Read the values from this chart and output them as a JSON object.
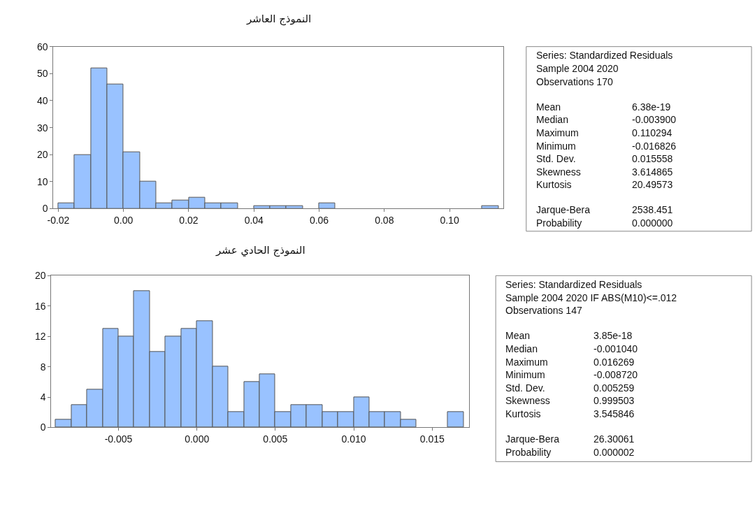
{
  "chart_data": [
    {
      "type": "histogram",
      "title": "النموذج العاشر",
      "bins": [
        -0.02,
        -0.015,
        -0.01,
        -0.005,
        0.0,
        0.005,
        0.01,
        0.015,
        0.02,
        0.025,
        0.03,
        0.035,
        0.04,
        0.045,
        0.05,
        0.055,
        0.06,
        0.065,
        0.07,
        0.075,
        0.08,
        0.085,
        0.09,
        0.095,
        0.1,
        0.105,
        0.11,
        0.115
      ],
      "values": [
        2,
        20,
        52,
        46,
        21,
        10,
        2,
        3,
        4,
        2,
        2,
        0,
        1,
        1,
        1,
        0,
        2,
        0,
        0,
        0,
        0,
        0,
        0,
        0,
        0,
        0,
        1
      ],
      "color": "#99c2ff",
      "xlim": [
        -0.0215,
        0.1165
      ],
      "xticks": [
        {
          "value": -0.02,
          "label": "-0.02"
        },
        {
          "value": 0,
          "label": "0.00"
        },
        {
          "value": 0.02,
          "label": "0.02"
        },
        {
          "value": 0.04,
          "label": "0.04"
        },
        {
          "value": 0.06,
          "label": "0.06"
        },
        {
          "value": 0.08,
          "label": "0.08"
        },
        {
          "value": 0.1,
          "label": "0.10"
        }
      ],
      "ylim": [
        0,
        60
      ],
      "yticks": [
        0,
        10,
        20,
        30,
        40,
        50,
        60
      ]
    },
    {
      "type": "other",
      "annotations": [
        "Series: Standardized Residuals",
        "Sample 2004 2020",
        "Observations 170",
        "Mean 6.38e-19",
        "Median -0.003900",
        "Maximum 0.110294",
        "Minimum -0.016826",
        "Std. Dev. 0.015558",
        "Skewness 3.614865",
        "Kurtosis 20.49573",
        "Jarque-Bera 2538.451",
        "Probability 0.000000"
      ]
    },
    {
      "type": "histogram",
      "title": "النموذج الحادي عشر",
      "bins": [
        -0.009,
        -0.008,
        -0.007,
        -0.006,
        -0.005,
        -0.004,
        -0.003,
        -0.002,
        -0.001,
        0.0,
        0.001,
        0.002,
        0.003,
        0.004,
        0.005,
        0.006,
        0.007,
        0.008,
        0.009,
        0.01,
        0.011,
        0.012,
        0.013,
        0.014,
        0.015,
        0.016,
        0.017
      ],
      "values": [
        1,
        3,
        5,
        13,
        12,
        18,
        10,
        12,
        13,
        14,
        8,
        2,
        6,
        7,
        2,
        3,
        3,
        2,
        2,
        4,
        2,
        2,
        1,
        0,
        0,
        2
      ],
      "color": "#99c2ff",
      "xlim": [
        -0.00928,
        0.01737
      ],
      "xticks": [
        {
          "value": -0.005,
          "label": "-0.005"
        },
        {
          "value": 0,
          "label": "0.000"
        },
        {
          "value": 0.005,
          "label": "0.005"
        },
        {
          "value": 0.01,
          "label": "0.010"
        },
        {
          "value": 0.015,
          "label": "0.015"
        }
      ],
      "ylim": [
        0,
        20
      ],
      "yticks": [
        0,
        4,
        8,
        12,
        16,
        20
      ]
    },
    {
      "type": "other",
      "annotations": [
        "Series: Standardized Residuals",
        "Sample 2004 2020 IF ABS(M10)<=.012",
        "Observations 147",
        "Mean 3.85e-18",
        "Median -0.001040",
        "Maximum 0.016269",
        "Minimum -0.008720",
        "Std. Dev. 0.005259",
        "Skewness 0.999503",
        "Kurtosis 3.545846",
        "Jarque-Bera 26.30061",
        "Probability 0.000002"
      ]
    }
  ]
}
